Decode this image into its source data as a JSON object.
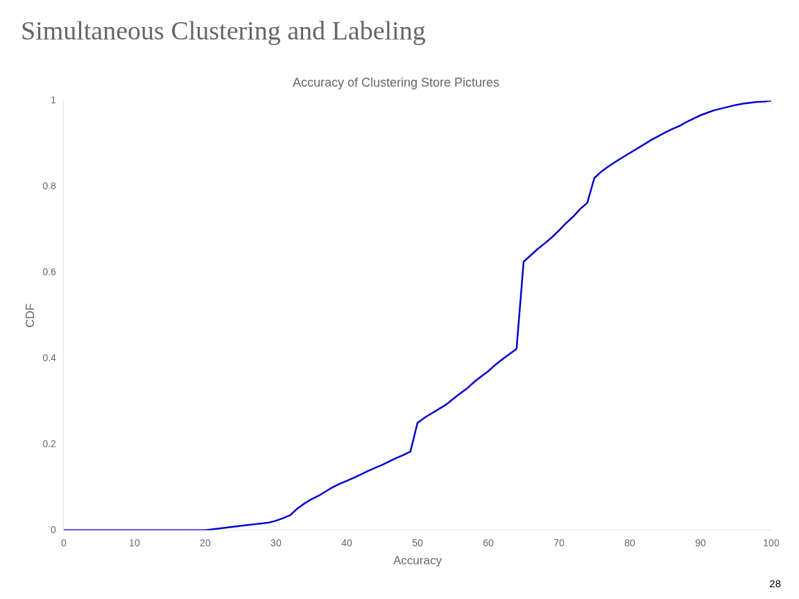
{
  "chart_data": {
    "type": "line",
    "title": "Simultaneous Clustering and Labeling",
    "subtitle": "Accuracy of Clustering Store Pictures",
    "x_label": "Accuracy",
    "y_label": "CDF",
    "annotations": [
      "28"
    ],
    "color": "#0000CC",
    "grid": false,
    "xlim": [
      0,
      100
    ],
    "ylim": [
      0,
      1
    ],
    "xticks": [
      0,
      10,
      20,
      30,
      40,
      50,
      60,
      70,
      80,
      90,
      100
    ],
    "yticks": [
      0,
      0.2,
      0.4,
      0.6,
      0.8,
      1
    ],
    "x": [
      0,
      1,
      2,
      3,
      4,
      5,
      6,
      7,
      8,
      9,
      10,
      11,
      12,
      13,
      14,
      15,
      16,
      17,
      18,
      19,
      20,
      21,
      22,
      23,
      24,
      25,
      26,
      27,
      28,
      29,
      30,
      31,
      32,
      33,
      34,
      35,
      36,
      37,
      38,
      39,
      40,
      41,
      42,
      43,
      44,
      45,
      46,
      47,
      48,
      49,
      50,
      51,
      52,
      53,
      54,
      55,
      56,
      57,
      58,
      59,
      60,
      61,
      62,
      63,
      64,
      65,
      66,
      67,
      68,
      69,
      70,
      71,
      72,
      73,
      74,
      75,
      76,
      77,
      78,
      79,
      80,
      81,
      82,
      83,
      84,
      85,
      86,
      87,
      88,
      89,
      90,
      91,
      92,
      93,
      94,
      95,
      96,
      97,
      98,
      99,
      100
    ],
    "values": [
      0.0,
      0.0,
      0.0,
      0.0,
      0.0,
      0.0,
      0.0,
      0.0,
      0.0,
      0.0,
      0.0,
      0.0,
      0.0,
      0.0,
      0.0,
      0.0,
      0.0,
      0.0,
      0.0,
      0.0,
      0.0,
      0.002,
      0.004,
      0.006,
      0.008,
      0.01,
      0.012,
      0.014,
      0.016,
      0.018,
      0.022,
      0.028,
      0.035,
      0.05,
      0.062,
      0.072,
      0.08,
      0.09,
      0.1,
      0.108,
      0.115,
      0.122,
      0.13,
      0.138,
      0.145,
      0.152,
      0.16,
      0.168,
      0.175,
      0.183,
      0.25,
      0.262,
      0.272,
      0.282,
      0.292,
      0.305,
      0.318,
      0.33,
      0.345,
      0.358,
      0.37,
      0.385,
      0.398,
      0.41,
      0.422,
      0.625,
      0.64,
      0.655,
      0.668,
      0.682,
      0.698,
      0.715,
      0.73,
      0.748,
      0.762,
      0.82,
      0.835,
      0.847,
      0.858,
      0.868,
      0.878,
      0.888,
      0.898,
      0.908,
      0.917,
      0.926,
      0.934,
      0.941,
      0.95,
      0.958,
      0.966,
      0.972,
      0.978,
      0.982,
      0.986,
      0.99,
      0.993,
      0.995,
      0.997,
      0.998,
      1.0
    ]
  }
}
